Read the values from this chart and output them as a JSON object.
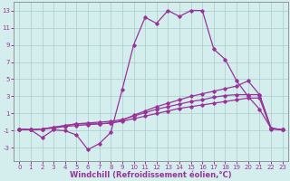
{
  "x_values": [
    0,
    1,
    2,
    3,
    4,
    5,
    6,
    7,
    8,
    9,
    10,
    11,
    12,
    13,
    14,
    15,
    16,
    17,
    18,
    19,
    20,
    21,
    22,
    23
  ],
  "line_main_y": [
    -0.8,
    -0.9,
    -1.8,
    -0.9,
    -1.0,
    -1.5,
    -3.2,
    -2.5,
    -1.2,
    3.8,
    9.0,
    12.2,
    11.5,
    13.0,
    12.3,
    13.0,
    13.0,
    8.5,
    7.3,
    4.8,
    3.0,
    1.5,
    -0.7,
    -0.9
  ],
  "line_top_y": [
    -0.8,
    -0.9,
    -0.8,
    -0.6,
    -0.4,
    -0.2,
    -0.2,
    -0.2,
    -0.1,
    0.2,
    0.8,
    1.3,
    1.8,
    2.2,
    2.6,
    3.0,
    3.3,
    3.6,
    3.9,
    4.2,
    4.8,
    3.2,
    -0.7,
    -0.9
  ],
  "line_mid_y": [
    -0.8,
    -0.9,
    -0.8,
    -0.6,
    -0.4,
    -0.2,
    -0.1,
    -0.0,
    0.1,
    0.3,
    0.7,
    1.1,
    1.5,
    1.8,
    2.1,
    2.4,
    2.6,
    2.9,
    3.1,
    3.2,
    3.2,
    3.2,
    -0.7,
    -0.9
  ],
  "line_bot_y": [
    -0.8,
    -0.9,
    -0.8,
    -0.7,
    -0.5,
    -0.4,
    -0.3,
    -0.2,
    -0.1,
    0.1,
    0.4,
    0.7,
    1.0,
    1.3,
    1.6,
    1.8,
    2.0,
    2.2,
    2.4,
    2.6,
    2.8,
    2.8,
    -0.8,
    -0.9
  ],
  "color": "#993399",
  "bg_color": "#d4eeed",
  "grid_color": "#aacccc",
  "xlabel": "Windchill (Refroidissement éolien,°C)",
  "ylim": [
    -4.5,
    14.0
  ],
  "xlim": [
    -0.5,
    23.5
  ],
  "yticks": [
    -3,
    -1,
    1,
    3,
    5,
    7,
    9,
    11,
    13
  ],
  "xticks": [
    0,
    1,
    2,
    3,
    4,
    5,
    6,
    7,
    8,
    9,
    10,
    11,
    12,
    13,
    14,
    15,
    16,
    17,
    18,
    19,
    20,
    21,
    22,
    23
  ],
  "tick_fontsize": 5.0,
  "xlabel_fontsize": 6.0,
  "line_width": 0.9,
  "marker": "D",
  "markersize": 1.8
}
